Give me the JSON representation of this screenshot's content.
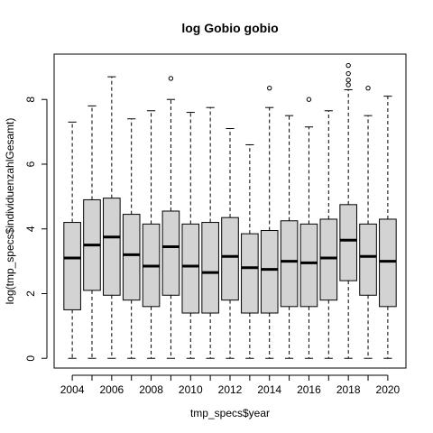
{
  "chart_data": {
    "type": "boxplot",
    "title": "log Gobio gobio",
    "xlabel": "tmp_specs$year",
    "ylabel": "log(tmp_specs$individuenzahlGesamt)",
    "ylim": [
      -0.3,
      9.4
    ],
    "yticks": [
      0,
      2,
      4,
      6,
      8
    ],
    "xtick_labels": [
      "2004",
      "2006",
      "2008",
      "2010",
      "2012",
      "2014",
      "2016",
      "2018",
      "2020"
    ],
    "box_fill": "#d3d3d3",
    "categories": [
      2004,
      2005,
      2006,
      2007,
      2008,
      2009,
      2010,
      2011,
      2012,
      2013,
      2014,
      2015,
      2016,
      2017,
      2018,
      2019,
      2020
    ],
    "boxes": [
      {
        "min": 0,
        "q1": 1.5,
        "median": 3.1,
        "q3": 4.2,
        "max": 7.3,
        "outliers": []
      },
      {
        "min": 0,
        "q1": 2.1,
        "median": 3.5,
        "q3": 4.9,
        "max": 7.8,
        "outliers": []
      },
      {
        "min": 0,
        "q1": 1.95,
        "median": 3.75,
        "q3": 4.95,
        "max": 8.7,
        "outliers": []
      },
      {
        "min": 0,
        "q1": 1.8,
        "median": 3.2,
        "q3": 4.45,
        "max": 7.4,
        "outliers": []
      },
      {
        "min": 0,
        "q1": 1.6,
        "median": 2.85,
        "q3": 4.15,
        "max": 7.65,
        "outliers": []
      },
      {
        "min": 0,
        "q1": 1.95,
        "median": 3.45,
        "q3": 4.55,
        "max": 8.0,
        "outliers": [
          8.65
        ]
      },
      {
        "min": 0,
        "q1": 1.4,
        "median": 2.85,
        "q3": 4.15,
        "max": 7.6,
        "outliers": []
      },
      {
        "min": 0,
        "q1": 1.4,
        "median": 2.65,
        "q3": 4.2,
        "max": 7.75,
        "outliers": []
      },
      {
        "min": 0,
        "q1": 1.8,
        "median": 3.15,
        "q3": 4.35,
        "max": 7.1,
        "outliers": []
      },
      {
        "min": 0,
        "q1": 1.4,
        "median": 2.8,
        "q3": 3.85,
        "max": 6.6,
        "outliers": []
      },
      {
        "min": 0,
        "q1": 1.4,
        "median": 2.75,
        "q3": 3.95,
        "max": 7.75,
        "outliers": [
          8.35
        ]
      },
      {
        "min": 0,
        "q1": 1.6,
        "median": 3.0,
        "q3": 4.25,
        "max": 7.5,
        "outliers": []
      },
      {
        "min": 0,
        "q1": 1.6,
        "median": 2.95,
        "q3": 4.15,
        "max": 7.15,
        "outliers": [
          8.0
        ]
      },
      {
        "min": 0,
        "q1": 1.8,
        "median": 3.1,
        "q3": 4.3,
        "max": 7.65,
        "outliers": []
      },
      {
        "min": 0,
        "q1": 2.4,
        "median": 3.65,
        "q3": 4.75,
        "max": 8.3,
        "outliers": [
          8.45,
          8.6,
          8.8,
          9.05
        ]
      },
      {
        "min": 0,
        "q1": 1.95,
        "median": 3.15,
        "q3": 4.15,
        "max": 7.5,
        "outliers": [
          8.35
        ]
      },
      {
        "min": 0,
        "q1": 1.6,
        "median": 3.0,
        "q3": 4.3,
        "max": 8.1,
        "outliers": []
      }
    ]
  }
}
